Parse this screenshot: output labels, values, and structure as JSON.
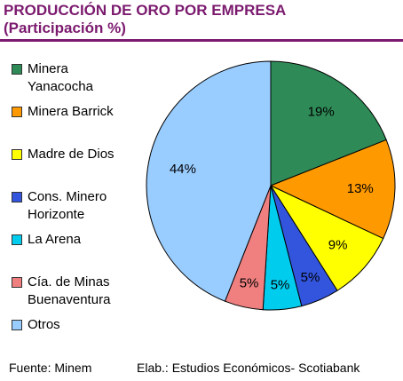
{
  "header": {
    "title": "PRODUCCIÓN DE ORO POR EMPRESA",
    "subtitle": "(Participación %)"
  },
  "chart_data": {
    "type": "pie",
    "title": "PRODUCCIÓN DE ORO POR EMPRESA",
    "subtitle": "(Participación %)",
    "legend_position": "left",
    "slices": [
      {
        "label": "Minera Yanacocha",
        "value": 19,
        "display": "19%",
        "color": "#2e8b57"
      },
      {
        "label": "Minera Barrick",
        "value": 13,
        "display": "13%",
        "color": "#ff9900"
      },
      {
        "label": "Madre de Dios",
        "value": 9,
        "display": "9%",
        "color": "#ffff00"
      },
      {
        "label": "Cons. Minero Horizonte",
        "value": 5,
        "display": "5%",
        "color": "#3355dd"
      },
      {
        "label": "La Arena",
        "value": 5,
        "display": "5%",
        "color": "#00ccee"
      },
      {
        "label": "Cía. de Minas Buenaventura",
        "value": 5,
        "display": "5%",
        "color": "#f08080"
      },
      {
        "label": "Otros",
        "value": 44,
        "display": "44%",
        "color": "#99ccff"
      }
    ]
  },
  "footer": {
    "source": "Fuente: Minem",
    "credit": "Elab.: Estudios Económicos- Scotiabank"
  }
}
